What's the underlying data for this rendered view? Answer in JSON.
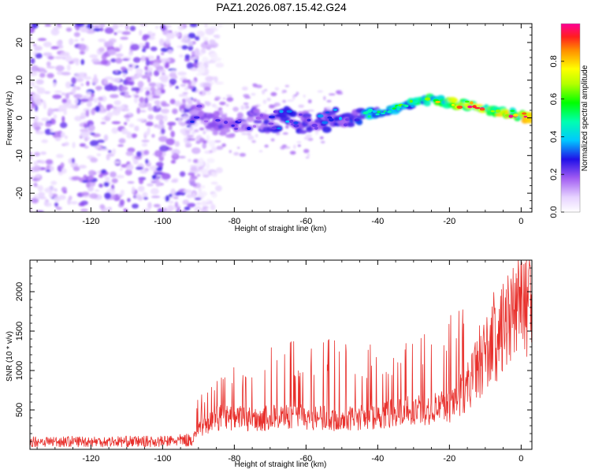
{
  "title": "PAZ1.2026.087.15.42.G24",
  "colors": {
    "snr_line": "#e8302c",
    "spec_low": "#b07cf0",
    "spec_mid": "#6a1cf0",
    "spec_ridge": "#2a2ad8"
  },
  "chart_data": [
    {
      "type": "heatmap",
      "title": "PAZ1.2026.087.15.42.G24",
      "xlabel": "Height of straight line (km)",
      "ylabel": "Frequency (Hz)",
      "colorbar_label": "Normalized spectral amplitude",
      "xlim": [
        -137,
        3
      ],
      "ylim": [
        -25,
        25
      ],
      "xticks": [
        -120,
        -100,
        -80,
        -60,
        -40,
        -20,
        0
      ],
      "yticks": [
        -20,
        -10,
        0,
        10,
        20
      ],
      "colorbar_range": [
        0.0,
        1.0
      ],
      "colorbar_ticks": [
        "0.0",
        "0.2",
        "0.4",
        "0.6",
        "0.8"
      ],
      "ridge": {
        "x": [
          -90,
          -85,
          -80,
          -75,
          -70,
          -65,
          -60,
          -55,
          -50,
          -45,
          -40,
          -35,
          -30,
          -25,
          -20,
          -15,
          -10,
          -5,
          0,
          3
        ],
        "y": [
          1,
          -1.5,
          -2.5,
          0,
          -1,
          0,
          -2,
          -1,
          0,
          1,
          1.5,
          2.5,
          4,
          5,
          4,
          3.5,
          2.5,
          1.5,
          0.5,
          0
        ],
        "amp": [
          0.25,
          0.25,
          0.25,
          0.25,
          0.3,
          0.35,
          0.3,
          0.32,
          0.35,
          0.4,
          0.45,
          0.5,
          0.6,
          0.7,
          0.8,
          0.85,
          0.85,
          0.9,
          0.9,
          0.9
        ]
      },
      "noise_region_x": [
        -137,
        -90
      ]
    },
    {
      "type": "line",
      "xlabel": "Height of straight line (km)",
      "ylabel": "SNR (10 * v/v)",
      "xlim": [
        -137,
        3
      ],
      "ylim": [
        0,
        2400
      ],
      "xticks": [
        -120,
        -100,
        -80,
        -60,
        -40,
        -20,
        0
      ],
      "yticks": [
        500,
        1000,
        1500,
        2000
      ],
      "series": [
        {
          "name": "SNR",
          "x": [
            -137,
            -130,
            -120,
            -110,
            -100,
            -92,
            -90,
            -85,
            -80,
            -75,
            -70,
            -65,
            -60,
            -55,
            -50,
            -45,
            -40,
            -35,
            -30,
            -25,
            -20,
            -15,
            -10,
            -5,
            0,
            3
          ],
          "baseline": [
            100,
            100,
            100,
            100,
            100,
            120,
            250,
            400,
            400,
            380,
            400,
            420,
            400,
            400,
            380,
            400,
            420,
            480,
            500,
            500,
            550,
            800,
            1200,
            1500,
            1800,
            2100
          ],
          "peak": [
            250,
            270,
            280,
            270,
            280,
            320,
            700,
            1000,
            1100,
            1150,
            1300,
            1400,
            1350,
            1450,
            1500,
            1400,
            1300,
            1400,
            1600,
            1700,
            1750,
            1800,
            1900,
            2100,
            2300,
            2350
          ]
        }
      ]
    }
  ]
}
